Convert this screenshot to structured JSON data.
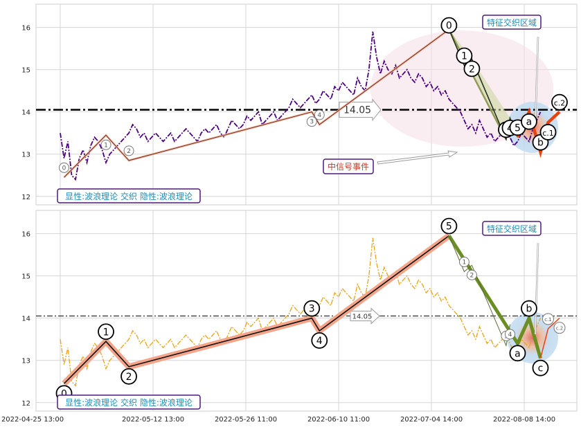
{
  "chart_data": [
    {
      "type": "line",
      "panel": "top",
      "title": "",
      "xlabel": "",
      "ylabel": "",
      "ylim": [
        11.8,
        16.55
      ],
      "y_ticks": [
        12,
        13,
        14,
        15,
        16
      ],
      "grid": true,
      "reference_line": {
        "y": 14.05,
        "label": "14.05",
        "style": "dash-dot",
        "color": "#000000"
      },
      "series": [
        {
          "style": "dash-dot",
          "color": "#4b0082",
          "x": [
            0,
            1,
            2,
            3,
            4,
            5,
            6,
            7,
            8,
            9,
            10,
            11,
            12,
            13,
            14,
            15,
            16,
            17,
            18,
            19,
            20,
            21,
            22,
            23,
            24,
            25,
            26,
            27,
            28,
            29,
            30,
            31,
            32,
            33,
            34,
            35,
            36,
            37,
            38,
            39,
            40,
            41,
            42,
            43,
            44,
            45,
            46,
            47,
            48,
            49,
            50,
            51,
            52,
            53,
            54,
            55,
            56,
            57,
            58,
            59,
            60,
            61,
            62,
            63,
            64,
            65,
            66,
            67,
            68,
            69,
            70,
            71,
            72,
            73,
            74,
            75,
            76,
            77,
            78,
            79,
            80,
            81,
            82,
            83,
            84,
            85,
            86,
            87,
            88,
            89,
            90,
            91,
            92,
            93,
            94,
            95,
            96,
            97,
            98,
            99,
            100,
            101,
            102,
            103,
            104,
            105,
            106,
            107,
            108,
            109,
            110,
            111,
            112,
            113,
            114,
            115,
            116,
            117,
            118,
            119,
            120,
            121,
            122,
            123,
            124,
            125,
            126
          ],
          "y": [
            13.5,
            12.9,
            13.3,
            12.5,
            12.4,
            12.9,
            13.1,
            12.8,
            13.2,
            13.4,
            13.3,
            13.1,
            12.8,
            13.0,
            13.1,
            13.2,
            13.3,
            13.4,
            13.5,
            13.7,
            13.6,
            13.4,
            13.5,
            13.3,
            13.4,
            13.5,
            13.4,
            13.3,
            13.4,
            13.5,
            13.3,
            13.4,
            13.5,
            13.6,
            13.5,
            13.4,
            13.3,
            13.5,
            13.6,
            13.5,
            13.6,
            13.7,
            13.5,
            13.4,
            13.6,
            13.8,
            13.7,
            13.6,
            13.7,
            13.9,
            13.8,
            13.9,
            14.0,
            13.7,
            13.8,
            13.9,
            14.0,
            13.8,
            13.9,
            14.0,
            14.1,
            14.3,
            14.2,
            14.1,
            14.2,
            14.3,
            14.4,
            14.2,
            14.3,
            14.5,
            14.4,
            14.3,
            14.6,
            14.5,
            14.7,
            14.6,
            14.5,
            14.4,
            14.8,
            14.6,
            14.5,
            15.0,
            15.9,
            15.3,
            14.9,
            15.2,
            15.0,
            14.9,
            15.1,
            14.8,
            14.9,
            15.0,
            14.8,
            14.7,
            14.9,
            14.8,
            14.6,
            14.7,
            14.5,
            14.6,
            14.4,
            14.5,
            14.3,
            14.2,
            14.1,
            14.0,
            13.8,
            13.6,
            13.7,
            13.5,
            13.8,
            13.6,
            13.4,
            13.5,
            13.3,
            13.4,
            13.5,
            13.6,
            13.4,
            13.2,
            13.3,
            13.5,
            13.4,
            13.3,
            13.6,
            13.8,
            14.0
          ]
        }
      ],
      "wave_labels_small": [
        {
          "label": "0",
          "x": 1,
          "y": 12.45
        },
        {
          "label": "1",
          "x": 12,
          "y": 13.45
        },
        {
          "label": "2",
          "x": 18,
          "y": 12.85
        },
        {
          "label": "3",
          "x": 66,
          "y": 14.0
        },
        {
          "label": "4",
          "x": 68,
          "y": 13.7
        }
      ],
      "wave_labels_large": [
        {
          "label": "0",
          "x": 102,
          "y": 15.95
        },
        {
          "label": "1",
          "x": 106,
          "y": 15.1
        },
        {
          "label": "2",
          "x": 108,
          "y": 15.25
        },
        {
          "label": "3",
          "x": 117,
          "y": 13.35
        },
        {
          "label": "4",
          "x": 118,
          "y": 13.85
        },
        {
          "label": "5",
          "x": 120,
          "y": 13.4
        },
        {
          "label": "a",
          "x": 123,
          "y": 14.0
        },
        {
          "label": "b",
          "x": 126,
          "y": 13.05
        },
        {
          "label": "c.1",
          "x": 128,
          "y": 13.75
        },
        {
          "label": "c.2",
          "x": 131,
          "y": 14.0
        }
      ],
      "annotations": {
        "feature_zone": "特征交织区域",
        "signal_event": "中信号事件",
        "legend_box": "显性:波浪理论 交织 隐性:波浪理论"
      }
    },
    {
      "type": "line",
      "panel": "bottom",
      "title": "",
      "xlabel": "",
      "ylabel": "",
      "ylim": [
        11.8,
        16.55
      ],
      "y_ticks": [
        12,
        13,
        14,
        15,
        16
      ],
      "grid": true,
      "reference_line": {
        "y": 14.05,
        "label": "14.05",
        "style": "dash-dot",
        "color": "#000000"
      },
      "x_tick_labels": [
        "2022-04-25 13:00",
        "2022-05-12 13:00",
        "2022-05-26 11:00",
        "2022-06-10 11:00",
        "2022-07-04 14:00",
        "2022-08-08 14:00"
      ],
      "series": [
        {
          "style": "dash-dot",
          "color": "#e8a317",
          "x": [
            0,
            1,
            2,
            3,
            4,
            5,
            6,
            7,
            8,
            9,
            10,
            11,
            12,
            13,
            14,
            15,
            16,
            17,
            18,
            19,
            20,
            21,
            22,
            23,
            24,
            25,
            26,
            27,
            28,
            29,
            30,
            31,
            32,
            33,
            34,
            35,
            36,
            37,
            38,
            39,
            40,
            41,
            42,
            43,
            44,
            45,
            46,
            47,
            48,
            49,
            50,
            51,
            52,
            53,
            54,
            55,
            56,
            57,
            58,
            59,
            60,
            61,
            62,
            63,
            64,
            65,
            66,
            67,
            68,
            69,
            70,
            71,
            72,
            73,
            74,
            75,
            76,
            77,
            78,
            79,
            80,
            81,
            82,
            83,
            84,
            85,
            86,
            87,
            88,
            89,
            90,
            91,
            92,
            93,
            94,
            95,
            96,
            97,
            98,
            99,
            100,
            101,
            102,
            103,
            104,
            105,
            106,
            107,
            108,
            109,
            110,
            111,
            112,
            113,
            114,
            115,
            116,
            117,
            118,
            119,
            120,
            121,
            122,
            123,
            124,
            125,
            126
          ],
          "y": [
            13.5,
            12.9,
            13.3,
            12.5,
            12.4,
            12.9,
            13.1,
            12.8,
            13.2,
            13.4,
            13.3,
            13.1,
            12.8,
            13.0,
            13.1,
            13.2,
            13.3,
            13.4,
            13.5,
            13.7,
            13.6,
            13.4,
            13.5,
            13.3,
            13.4,
            13.5,
            13.4,
            13.3,
            13.4,
            13.5,
            13.3,
            13.4,
            13.5,
            13.6,
            13.5,
            13.4,
            13.3,
            13.5,
            13.6,
            13.5,
            13.6,
            13.7,
            13.5,
            13.4,
            13.6,
            13.8,
            13.7,
            13.6,
            13.7,
            13.9,
            13.8,
            13.9,
            14.0,
            13.7,
            13.8,
            13.9,
            14.0,
            13.8,
            13.9,
            14.0,
            14.1,
            14.3,
            14.2,
            14.1,
            14.2,
            14.3,
            14.4,
            14.2,
            14.3,
            14.5,
            14.4,
            14.3,
            14.6,
            14.5,
            14.7,
            14.6,
            14.5,
            14.4,
            14.8,
            14.6,
            14.5,
            15.0,
            15.9,
            15.3,
            14.9,
            15.2,
            15.0,
            14.9,
            15.1,
            14.8,
            14.9,
            15.0,
            14.8,
            14.7,
            14.9,
            14.8,
            14.6,
            14.7,
            14.5,
            14.6,
            14.4,
            14.5,
            14.3,
            14.2,
            14.1,
            14.0,
            13.8,
            13.6,
            13.7,
            13.5,
            13.8,
            13.6,
            13.4,
            13.5,
            13.3,
            13.4,
            13.5,
            13.6,
            13.4,
            13.2,
            13.3,
            13.5,
            13.4,
            13.3,
            13.6,
            13.8,
            14.0
          ]
        }
      ],
      "wave_labels_small": [
        {
          "label": "1",
          "x": 106,
          "y": 15.1
        },
        {
          "label": "2",
          "x": 108,
          "y": 15.25
        },
        {
          "label": "3",
          "x": 117,
          "y": 13.35
        },
        {
          "label": "4",
          "x": 118,
          "y": 13.85
        },
        {
          "label": "c.1",
          "x": 128,
          "y": 13.75
        },
        {
          "label": "c.2",
          "x": 131,
          "y": 14.0
        }
      ],
      "wave_labels_large": [
        {
          "label": "0",
          "x": 1,
          "y": 12.45
        },
        {
          "label": "1",
          "x": 12,
          "y": 13.45
        },
        {
          "label": "2",
          "x": 18,
          "y": 12.85
        },
        {
          "label": "3",
          "x": 66,
          "y": 14.0
        },
        {
          "label": "4",
          "x": 68,
          "y": 13.7
        },
        {
          "label": "5",
          "x": 102,
          "y": 15.95
        },
        {
          "label": "a",
          "x": 120,
          "y": 13.4
        },
        {
          "label": "b",
          "x": 123,
          "y": 14.0
        },
        {
          "label": "c",
          "x": 126,
          "y": 13.05
        }
      ],
      "annotations": {
        "feature_zone": "特征交织区域",
        "legend_box": "显性:波浪理论 交织 隐性:波浪理论"
      }
    }
  ]
}
